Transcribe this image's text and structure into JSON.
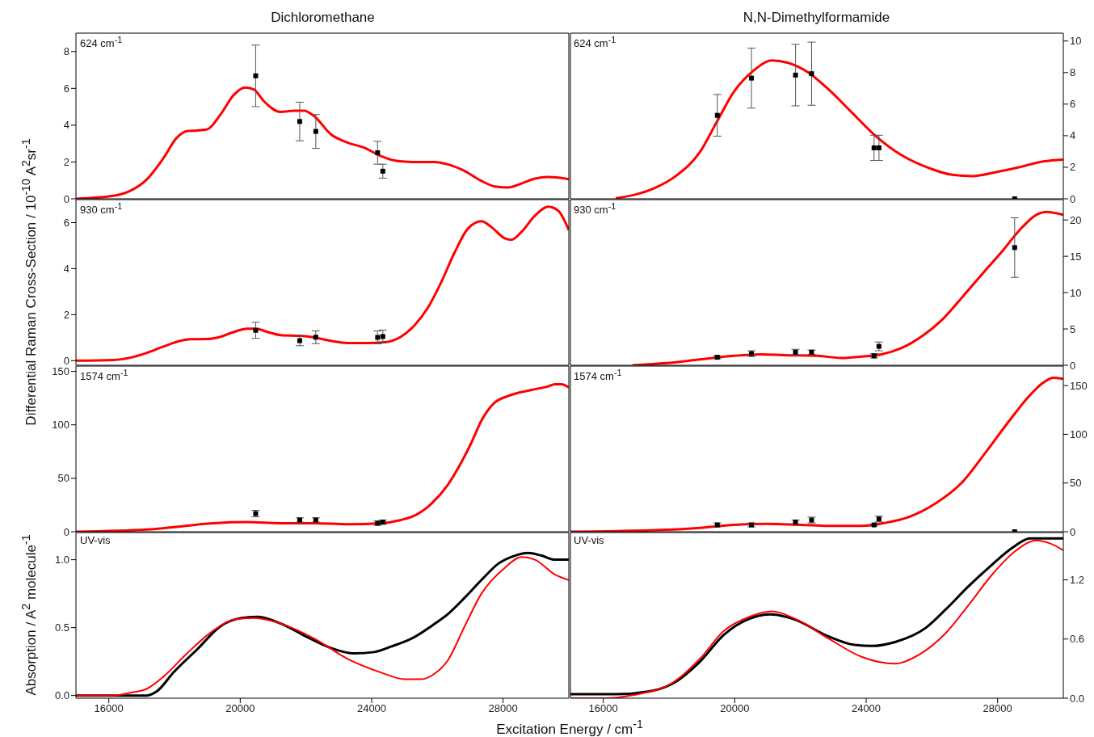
{
  "chart_data": [
    {
      "type": "line",
      "title": "Dichloromethane",
      "ylabel": "Differential Raman Cross-Section / 10$^{-10}$ A$^{2}$sr$^{-1}$",
      "annotations": [
        "624 cm$^{-1}$"
      ],
      "xlim": [
        15000,
        30000
      ],
      "ylim": [
        0,
        9
      ],
      "yticks": [
        0,
        2,
        4,
        6,
        8
      ],
      "tick_labels": "y",
      "series": [
        {
          "color": "#ff0000",
          "x": [
            15000,
            16140,
            16650,
            17160,
            17670,
            18070,
            18380,
            18690,
            18990,
            19400,
            19810,
            20160,
            20420,
            20720,
            21230,
            21640,
            21940,
            22250,
            22760,
            23270,
            23780,
            24280,
            24790,
            25300,
            25910,
            26320,
            26830,
            27340,
            27750,
            28150,
            28560,
            28970,
            29370,
            29680,
            30000
          ],
          "values": [
            0,
            0.16,
            0.43,
            1.06,
            2.23,
            3.32,
            3.68,
            3.71,
            3.77,
            4.58,
            5.66,
            6.05,
            5.93,
            5.3,
            4.72,
            4.79,
            4.79,
            4.49,
            3.5,
            3.05,
            2.77,
            2.32,
            2.05,
            2.0,
            2.0,
            1.87,
            1.51,
            0.97,
            0.67,
            0.61,
            0.83,
            1.1,
            1.19,
            1.15,
            1.06
          ]
        },
        {
          "type": "scatter",
          "color": "#000000",
          "marker": "square",
          "x": [
            20470,
            21810,
            22300,
            24180,
            24340
          ],
          "values": [
            6.68,
            4.2,
            3.66,
            2.5,
            1.5
          ],
          "errors": [
            1.67,
            1.05,
            0.92,
            0.62,
            0.38
          ]
        }
      ]
    },
    {
      "type": "line",
      "title": "N,N-Dimethylformamide",
      "annotations": [
        "624 cm$^{-1}$"
      ],
      "xlim": [
        15000,
        30000
      ],
      "ylim": [
        0,
        10.5
      ],
      "yticks": [
        0,
        2,
        4,
        6,
        8,
        10
      ],
      "tick_labels": "y",
      "series": [
        {
          "color": "#ff0000",
          "x": [
            16380,
            17510,
            18230,
            18940,
            19450,
            19970,
            20580,
            21140,
            21600,
            22220,
            22830,
            23550,
            24270,
            25090,
            25910,
            26620,
            27240,
            27950,
            28670,
            29390,
            30000
          ],
          "values": [
            0.04,
            0.63,
            1.48,
            2.96,
            4.86,
            6.77,
            8.14,
            8.77,
            8.63,
            8.03,
            6.98,
            5.5,
            4.02,
            2.75,
            1.95,
            1.52,
            1.44,
            1.69,
            2.01,
            2.37,
            2.49
          ]
        },
        {
          "type": "scatter",
          "color": "#000000",
          "marker": "square",
          "x": [
            19470,
            20510,
            21850,
            22340,
            24240,
            24390,
            28520
          ],
          "values": [
            5.29,
            7.65,
            7.84,
            7.93,
            3.23,
            3.23,
            0
          ],
          "errors": [
            1.32,
            1.9,
            1.95,
            2,
            0.8,
            0.8,
            null
          ]
        }
      ]
    },
    {
      "type": "line",
      "annotations": [
        "930 cm$^{-1}$"
      ],
      "xlim": [
        15000,
        30000
      ],
      "ylim": [
        -0.2,
        7
      ],
      "yticks": [
        0,
        2,
        4,
        6
      ],
      "tick_labels": "y",
      "series": [
        {
          "color": "#ff0000",
          "x": [
            15000,
            16140,
            16650,
            17160,
            17670,
            18180,
            18480,
            18990,
            19400,
            19810,
            20210,
            20470,
            20820,
            21230,
            21840,
            22250,
            22760,
            23270,
            23880,
            24390,
            24890,
            25300,
            25710,
            26120,
            26520,
            26930,
            27340,
            27640,
            28050,
            28250,
            28560,
            28970,
            29370,
            29680,
            30000
          ],
          "values": [
            0,
            0.03,
            0.13,
            0.34,
            0.62,
            0.86,
            0.93,
            0.94,
            1.04,
            1.25,
            1.39,
            1.39,
            1.25,
            1.11,
            1.08,
            1.01,
            0.86,
            0.77,
            0.77,
            0.8,
            1.04,
            1.53,
            2.3,
            3.42,
            4.69,
            5.74,
            6.06,
            5.81,
            5.32,
            5.25,
            5.6,
            6.3,
            6.69,
            6.51,
            5.67
          ]
        },
        {
          "type": "scatter",
          "color": "#000000",
          "marker": "square",
          "x": [
            20470,
            21810,
            22300,
            24180,
            24340
          ],
          "values": [
            1.32,
            0.87,
            1.02,
            1.01,
            1.05
          ],
          "errors": [
            0.35,
            0.22,
            0.28,
            0.28,
            0.28
          ]
        }
      ]
    },
    {
      "type": "line",
      "annotations": [
        "930 cm$^{-1}$"
      ],
      "xlim": [
        15000,
        30000
      ],
      "ylim": [
        0,
        22.8
      ],
      "yticks": [
        0,
        5,
        10,
        15,
        20
      ],
      "tick_labels": "y",
      "series": [
        {
          "color": "#ff0000",
          "x": [
            16890,
            17920,
            18940,
            19970,
            20790,
            21500,
            22530,
            23240,
            23860,
            24470,
            25090,
            25700,
            26320,
            26930,
            27540,
            28160,
            28670,
            29180,
            29490,
            30000
          ],
          "values": [
            0,
            0.3,
            0.8,
            1.3,
            1.5,
            1.4,
            1.3,
            1.0,
            1.2,
            1.5,
            2.4,
            4.0,
            6.3,
            9.4,
            12.6,
            15.8,
            18.6,
            20.7,
            21.1,
            20.7
          ]
        },
        {
          "type": "scatter",
          "color": "#000000",
          "marker": "square",
          "x": [
            19470,
            20510,
            21850,
            22340,
            24240,
            24390,
            28520
          ],
          "values": [
            1.1,
            1.6,
            1.8,
            1.8,
            1.3,
            2.6,
            16.2
          ],
          "errors": [
            0.2,
            0.4,
            0.4,
            0.3,
            0.3,
            0.6,
            4.1
          ]
        }
      ]
    },
    {
      "type": "line",
      "annotations": [
        "1574 cm$^{-1}$"
      ],
      "xlim": [
        15000,
        30000
      ],
      "ylim": [
        0,
        155
      ],
      "yticks": [
        0,
        50,
        100,
        150
      ],
      "tick_labels": "y",
      "series": [
        {
          "color": "#ff0000",
          "x": [
            15000,
            17160,
            18180,
            19190,
            20210,
            21230,
            22250,
            23270,
            24280,
            24890,
            25300,
            25810,
            26320,
            26730,
            27030,
            27340,
            27750,
            28150,
            28760,
            29370,
            29580,
            29780,
            30000
          ],
          "values": [
            0,
            2,
            5,
            8,
            9,
            8,
            8,
            7,
            8,
            11,
            15,
            26,
            44,
            65,
            83,
            104,
            121,
            127,
            132,
            136,
            138,
            138,
            135
          ]
        },
        {
          "type": "scatter",
          "color": "#000000",
          "marker": "square",
          "x": [
            20470,
            21810,
            22300,
            24180,
            24340
          ],
          "values": [
            17,
            11,
            11,
            8,
            9
          ],
          "errors": [
            3,
            2,
            2,
            2,
            2
          ]
        }
      ]
    },
    {
      "type": "line",
      "annotations": [
        "1574 cm$^{-1}$"
      ],
      "xlim": [
        15000,
        30000
      ],
      "ylim": [
        0,
        170
      ],
      "yticks": [
        0,
        50,
        100,
        150
      ],
      "tick_labels": "y",
      "series": [
        {
          "color": "#ff0000",
          "x": [
            15000,
            17920,
            18940,
            19970,
            20990,
            22010,
            23040,
            23860,
            24570,
            25290,
            26110,
            26930,
            27650,
            28360,
            28980,
            29390,
            29690,
            30000
          ],
          "values": [
            0,
            2,
            4,
            7,
            8,
            7,
            6,
            6,
            9,
            15,
            29,
            51,
            82,
            114,
            140,
            153,
            158,
            157
          ]
        },
        {
          "type": "scatter",
          "color": "#000000",
          "marker": "square",
          "x": [
            19470,
            20510,
            21850,
            22340,
            24240,
            24390,
            28520
          ],
          "values": [
            7,
            7,
            10,
            12,
            7,
            13,
            0
          ],
          "errors": [
            2,
            2,
            2,
            3,
            1,
            3,
            null
          ]
        }
      ]
    },
    {
      "type": "line",
      "ylabel": "Absorption / A$^{2}$ molecule$^{-1}$",
      "xlabel": "Excitation Energy / cm$^{-1}$",
      "annotations": [
        "UV-vis"
      ],
      "xlim": [
        15000,
        30000
      ],
      "xticks": [
        16000,
        20000,
        24000,
        28000
      ],
      "ylim": [
        -0.02,
        1.2
      ],
      "yticks": [
        {
          "value": 0,
          "label": "0.0"
        },
        {
          "value": 0.5,
          "label": "0.5"
        },
        {
          "value": 1,
          "label": "1.0"
        }
      ],
      "series": [
        {
          "color": "#000000",
          "x": [
            15000,
            17160,
            17460,
            17970,
            18690,
            19400,
            20010,
            20520,
            21230,
            22040,
            22760,
            23470,
            24080,
            24590,
            25300,
            25810,
            26320,
            26830,
            27340,
            27850,
            28360,
            28760,
            29170,
            29580,
            30000
          ],
          "values": [
            0,
            0,
            0.03,
            0.17,
            0.34,
            0.51,
            0.57,
            0.58,
            0.53,
            0.43,
            0.35,
            0.31,
            0.32,
            0.36,
            0.43,
            0.51,
            0.6,
            0.72,
            0.85,
            0.97,
            1.03,
            1.05,
            1.03,
            1.0,
            1.0
          ]
        },
        {
          "color": "#ff0000",
          "x": [
            15000,
            16140,
            16650,
            17160,
            17670,
            18380,
            19190,
            19810,
            20420,
            21230,
            22250,
            23270,
            24280,
            25000,
            25510,
            25910,
            26320,
            26830,
            27340,
            28050,
            28560,
            28970,
            29580,
            30000
          ],
          "values": [
            0,
            0,
            0.02,
            0.05,
            0.14,
            0.31,
            0.48,
            0.56,
            0.57,
            0.53,
            0.42,
            0.27,
            0.17,
            0.12,
            0.12,
            0.16,
            0.26,
            0.51,
            0.75,
            0.94,
            1.02,
            1.0,
            0.89,
            0.85
          ]
        }
      ]
    },
    {
      "type": "line",
      "annotations": [
        "UV-vis"
      ],
      "xlim": [
        15000,
        30000
      ],
      "xticks": [
        16000,
        20000,
        24000,
        28000
      ],
      "ylim": [
        0,
        1.68
      ],
      "yticks": [
        {
          "value": 0,
          "label": "0.0"
        },
        {
          "value": 0.6,
          "label": "0.6"
        },
        {
          "value": 1.2,
          "label": "1.2"
        }
      ],
      "series": [
        {
          "color": "#000000",
          "x": [
            15000,
            16380,
            17410,
            18120,
            18940,
            19660,
            20480,
            21090,
            21810,
            22830,
            23650,
            24160,
            24880,
            25800,
            26420,
            27130,
            27850,
            28470,
            28980,
            29390,
            30000
          ],
          "values": [
            0.04,
            0.04,
            0.07,
            0.15,
            0.37,
            0.64,
            0.81,
            0.85,
            0.8,
            0.63,
            0.54,
            0.53,
            0.57,
            0.71,
            0.9,
            1.14,
            1.36,
            1.53,
            1.62,
            1.62,
            1.62
          ]
        },
        {
          "color": "#ff0000",
          "x": [
            15000,
            16080,
            16890,
            18120,
            18940,
            19660,
            20480,
            21140,
            21810,
            22830,
            23860,
            24880,
            25600,
            26420,
            27130,
            27850,
            28570,
            29180,
            29590,
            30000
          ],
          "values": [
            0,
            0,
            0.03,
            0.16,
            0.4,
            0.68,
            0.83,
            0.88,
            0.81,
            0.61,
            0.42,
            0.35,
            0.44,
            0.66,
            0.95,
            1.26,
            1.5,
            1.6,
            1.57,
            1.5
          ]
        }
      ]
    }
  ]
}
